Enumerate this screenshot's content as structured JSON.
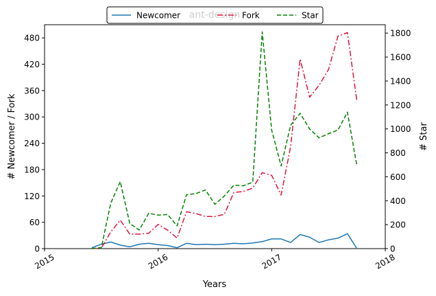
{
  "chart_data": {
    "type": "line",
    "title": "ant-design",
    "xlabel": "Years",
    "ylabel_left": "# Newcomer / Fork",
    "ylabel_right": "# Star",
    "x_ticks": [
      "2015",
      "2016",
      "2017",
      "2018"
    ],
    "xlim": [
      "2015-01-01",
      "2018-01-01"
    ],
    "ylim_left": [
      0,
      510
    ],
    "ylim_right": [
      0,
      1870
    ],
    "y_ticks_left": [
      0,
      60,
      120,
      180,
      240,
      300,
      360,
      420,
      480
    ],
    "y_ticks_right": [
      0,
      200,
      400,
      600,
      800,
      1000,
      1200,
      1400,
      1600,
      1800
    ],
    "legend_position": "top-center",
    "grid": false,
    "x": [
      "2015-06",
      "2015-07",
      "2015-08",
      "2015-09",
      "2015-10",
      "2015-11",
      "2015-12",
      "2016-01",
      "2016-02",
      "2016-03",
      "2016-04",
      "2016-05",
      "2016-06",
      "2016-07",
      "2016-08",
      "2016-09",
      "2016-10",
      "2016-11",
      "2016-12",
      "2017-01",
      "2017-02",
      "2017-03",
      "2017-04",
      "2017-05",
      "2017-06",
      "2017-07",
      "2017-08",
      "2017-09",
      "2017-10"
    ],
    "series": [
      {
        "name": "Newcomer",
        "axis": "left",
        "color": "#1f77b4",
        "dash": "solid",
        "values": [
          2,
          10,
          15,
          8,
          4,
          10,
          12,
          9,
          7,
          2,
          12,
          9,
          10,
          9,
          10,
          12,
          11,
          13,
          16,
          22,
          22,
          14,
          32,
          26,
          14,
          20,
          24,
          34,
          0
        ]
      },
      {
        "name": "Fork",
        "axis": "left",
        "color": "#dc143c",
        "dash": "dashdot",
        "values": [
          0,
          1,
          38,
          65,
          33,
          33,
          35,
          55,
          42,
          24,
          84,
          80,
          73,
          73,
          78,
          128,
          130,
          138,
          173,
          167,
          122,
          232,
          432,
          345,
          372,
          408,
          484,
          492,
          336
        ]
      },
      {
        "name": "Star",
        "axis": "right",
        "color": "#008000",
        "dash": "dashed",
        "values": [
          2,
          8,
          380,
          560,
          210,
          155,
          295,
          280,
          285,
          190,
          450,
          460,
          490,
          370,
          440,
          530,
          525,
          555,
          1810,
          990,
          690,
          1030,
          1130,
          1000,
          925,
          960,
          990,
          1140,
          690
        ]
      }
    ]
  }
}
